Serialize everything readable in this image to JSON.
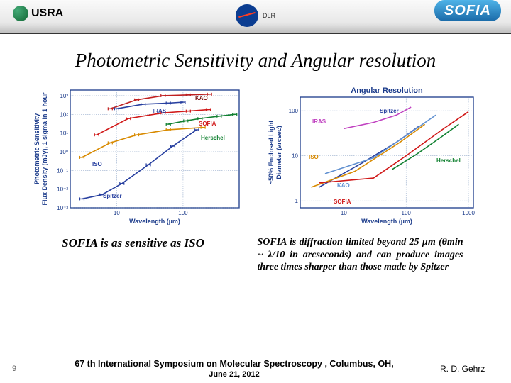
{
  "header": {
    "logo_left_text": "USRA",
    "logo_center_dlr": "DLR",
    "logo_right_text": "SOFIA"
  },
  "title": "Photometric Sensitivity and Angular resolution",
  "chart_left": {
    "type": "line-log-log",
    "ylabel_line1": "Photometric Sensitivity",
    "ylabel_line2": "Flux Density (mJy), 1 sigma in 1 hour",
    "xlabel": "Wavelength (µm)",
    "x_ticks": [
      "10",
      "100"
    ],
    "y_ticks": [
      "10⁻³",
      "10⁻²",
      "10⁻¹",
      "10⁰",
      "10¹",
      "10²",
      "10³"
    ],
    "xlim": [
      2,
      700
    ],
    "ylim": [
      0.001,
      2000
    ],
    "background": "#ffffff",
    "grid_color": "#6080b0",
    "border_color": "#1a3a8a",
    "series": {
      "KAO": {
        "color": "#c02020",
        "label": "KAO",
        "label_color": "#7a1010",
        "points": [
          [
            8,
            200
          ],
          [
            20,
            600
          ],
          [
            50,
            1000
          ],
          [
            120,
            1100
          ],
          [
            250,
            1200
          ]
        ]
      },
      "IRAS": {
        "color": "#2840a0",
        "label": "IRAS",
        "label_color": "#2840a0",
        "points": [
          [
            10,
            200
          ],
          [
            25,
            350
          ],
          [
            60,
            400
          ],
          [
            100,
            450
          ]
        ]
      },
      "SOFIA": {
        "color": "#d01818",
        "label": "SOFIA",
        "label_color": "#d01818",
        "points": [
          [
            5,
            8
          ],
          [
            15,
            60
          ],
          [
            50,
            120
          ],
          [
            120,
            150
          ],
          [
            240,
            180
          ]
        ]
      },
      "Herschel": {
        "color": "#108030",
        "label": "Herschel",
        "label_color": "#108030",
        "points": [
          [
            60,
            30
          ],
          [
            110,
            45
          ],
          [
            180,
            60
          ],
          [
            350,
            80
          ],
          [
            600,
            100
          ]
        ]
      },
      "ISO": {
        "color": "#d88a00",
        "label": "ISO",
        "label_color": "#2840a0",
        "points": [
          [
            3,
            0.5
          ],
          [
            8,
            3
          ],
          [
            20,
            8
          ],
          [
            60,
            15
          ],
          [
            200,
            20
          ]
        ]
      },
      "Spitzer": {
        "color": "#2840a0",
        "label": "Spitzer",
        "label_color": "#2840a0",
        "points": [
          [
            3,
            0.003
          ],
          [
            6,
            0.005
          ],
          [
            12,
            0.02
          ],
          [
            30,
            0.2
          ],
          [
            70,
            2
          ],
          [
            160,
            15
          ]
        ]
      }
    }
  },
  "chart_right": {
    "type": "line-log-log",
    "title": "Angular Resolution",
    "ylabel_line1": "~50% Enclosed Light",
    "ylabel_line2": "Diameter (arcsec)",
    "xlabel": "Wavelength (µm)",
    "x_ticks": [
      "10",
      "100",
      "1000"
    ],
    "y_ticks": [
      "1",
      "10",
      "100"
    ],
    "xlim": [
      2,
      1200
    ],
    "ylim": [
      0.7,
      200
    ],
    "background": "#ffffff",
    "grid_color": "#6080b0",
    "border_color": "#1a3a8a",
    "series": {
      "Spitzer": {
        "color": "#2840a0",
        "label": "Spitzer",
        "points": [
          [
            4,
            2
          ],
          [
            20,
            7
          ],
          [
            70,
            20
          ],
          [
            160,
            45
          ]
        ]
      },
      "IRAS": {
        "color": "#c040c0",
        "label": "IRAS",
        "points": [
          [
            10,
            40
          ],
          [
            30,
            55
          ],
          [
            70,
            80
          ],
          [
            120,
            120
          ]
        ]
      },
      "ISO": {
        "color": "#d88a00",
        "label": "ISO",
        "points": [
          [
            3,
            2
          ],
          [
            15,
            4.5
          ],
          [
            80,
            20
          ],
          [
            200,
            50
          ]
        ]
      },
      "Herschel": {
        "color": "#108030",
        "label": "Herschel",
        "points": [
          [
            60,
            5
          ],
          [
            150,
            11
          ],
          [
            350,
            25
          ],
          [
            700,
            50
          ]
        ]
      },
      "KAO": {
        "color": "#6090d0",
        "label": "KAO",
        "points": [
          [
            5,
            4
          ],
          [
            30,
            9
          ],
          [
            100,
            28
          ],
          [
            300,
            80
          ]
        ]
      },
      "SOFIA": {
        "color": "#d01818",
        "label": "SOFIA",
        "points": [
          [
            4,
            2.5
          ],
          [
            30,
            3.2
          ],
          [
            100,
            10
          ],
          [
            400,
            40
          ],
          [
            1000,
            95
          ]
        ]
      }
    }
  },
  "caption_left": "SOFIA is as sensitive as ISO",
  "caption_right": "SOFIA is diffraction limited beyond 25 µm (θmin ~ λ/10 in arcseconds) and can produce images three times sharper than those made by Spitzer",
  "footer": {
    "page": "9",
    "center": "67 th International Symposium on Molecular Spectroscopy , Columbus, OH,",
    "date": "June 21, 2012",
    "right": "R. D. Gehrz"
  }
}
